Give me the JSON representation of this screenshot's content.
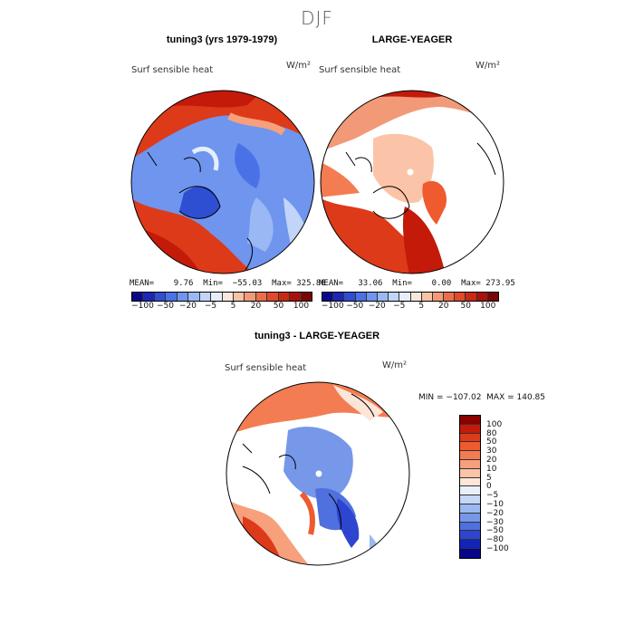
{
  "figure_title": "DJF",
  "panels": [
    {
      "title": "tuning3 (yrs 1979-1979)",
      "variable": "Surf sensible heat",
      "units": "W/m²",
      "stats": "MEAN=    9.76  Min=  −55.03  Max= 325.88"
    },
    {
      "title": "LARGE-YEAGER",
      "variable": "Surf sensible heat",
      "units": "W/m²",
      "stats": "MEAN=   33.06  Min=    0.00  Max= 273.95"
    },
    {
      "title": "tuning3 - LARGE-YEAGER",
      "variable": "Surf sensible heat",
      "units": "W/m²",
      "stats": "MIN = −107.02  MAX = 140.85"
    }
  ],
  "colorbar_top": {
    "tick_labels": [
      "−100",
      "−50",
      "−20",
      "−5",
      "5",
      "20",
      "50",
      "100"
    ],
    "colors": [
      "#08088a",
      "#1c28b4",
      "#2e4fd2",
      "#4a72e6",
      "#6f95ee",
      "#99b8f4",
      "#c2d5f8",
      "#e6eefb",
      "#fbe6dc",
      "#f8c2a6",
      "#f29a78",
      "#ea6e4c",
      "#e04a2a",
      "#c92a14",
      "#a8120a",
      "#7a0505"
    ]
  },
  "colorbar_diff": {
    "levels": [
      "100",
      "80",
      "50",
      "30",
      "20",
      "10",
      "5",
      "0",
      "−5",
      "−10",
      "−20",
      "−30",
      "−50",
      "−80",
      "−100"
    ],
    "colors": [
      "#8b0000",
      "#c41a0a",
      "#dd3a1a",
      "#ef5a2e",
      "#f47c52",
      "#f7a07c",
      "#fbc4a8",
      "#fde6d8",
      "#eaf0fb",
      "#c6d6f6",
      "#9cb8f0",
      "#7797e8",
      "#4f70de",
      "#2d45cf",
      "#1224b6",
      "#06068a"
    ]
  }
}
